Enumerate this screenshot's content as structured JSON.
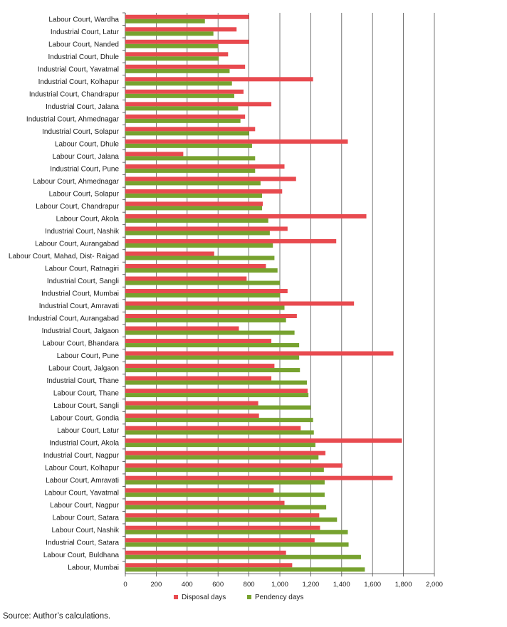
{
  "chart_data": {
    "type": "bar",
    "orientation": "horizontal",
    "categories": [
      "Labour Court, Wardha",
      "Industrial Court, Latur",
      "Labour Court, Nanded",
      "Industrial Court, Dhule",
      "Industrial Court, Yavatmal",
      "Industrial Court, Kolhapur",
      "Industrial Court, Chandrapur",
      "Industrial Court, Jalana",
      "Industrial Court, Ahmednagar",
      "Industrial Court, Solapur",
      "Labour Court, Dhule",
      "Labour Court, Jalana",
      "Industrial Court, Pune",
      "Labour Court, Ahmednagar",
      "Labour Court, Solapur",
      "Labour Court, Chandrapur",
      "Labour Court, Akola",
      "Industrial Court, Nashik",
      "Labour Court, Aurangabad",
      "Labour Court, Mahad, Dist- Raigad",
      "Labour Court, Ratnagiri",
      "Industrial Court, Sangli",
      "Industrial Court, Mumbai",
      "Industrial Court, Amravati",
      "Industrial Court, Aurangabad",
      "Industrial Court, Jalgaon",
      "Labour Court, Bhandara",
      "Labour Court, Pune",
      "Labour Court, Jalgaon",
      "Industrial Court, Thane",
      "Labour Court, Thane",
      "Labour Court, Sangli",
      "Labour Court, Gondia",
      "Labour Court, Latur",
      "Industrial Court, Akola",
      "Industrial Court, Nagpur",
      "Labour Court, Kolhapur",
      "Labour Court, Amravati",
      "Labour Court, Yavatmal",
      "Labour Court, Nagpur",
      "Labour Court, Satara",
      "Labour Court, Nashik",
      "Industrial Court, Satara",
      "Labour Court, Buldhana",
      "Labour, Mumbai"
    ],
    "series": [
      {
        "name": "Disposal days",
        "color": "#e84a4f",
        "values": [
          800,
          720,
          800,
          665,
          775,
          1215,
          765,
          945,
          775,
          840,
          1440,
          375,
          1030,
          1105,
          1015,
          890,
          1560,
          1050,
          1365,
          575,
          910,
          785,
          1050,
          1480,
          1110,
          735,
          945,
          1735,
          965,
          945,
          1180,
          860,
          865,
          1135,
          1790,
          1295,
          1405,
          1730,
          960,
          1030,
          1255,
          1260,
          1225,
          1040,
          1080
        ]
      },
      {
        "name": "Pendency days",
        "color": "#77a22f",
        "values": [
          515,
          570,
          600,
          605,
          675,
          690,
          705,
          730,
          745,
          800,
          820,
          840,
          840,
          875,
          885,
          885,
          925,
          935,
          955,
          965,
          985,
          1000,
          1000,
          1030,
          1040,
          1095,
          1125,
          1125,
          1130,
          1175,
          1185,
          1200,
          1215,
          1220,
          1230,
          1250,
          1285,
          1290,
          1290,
          1300,
          1370,
          1440,
          1445,
          1525,
          1550
        ]
      }
    ],
    "x_ticks": [
      "0",
      "200",
      "400",
      "600",
      "800",
      "1,000",
      "1,200",
      "1,400",
      "1,600",
      "1,800",
      "2,000"
    ],
    "xlim": [
      0,
      2000
    ],
    "grid": "vertical",
    "legend": "bottom"
  },
  "source_note": "Source: Author’s calculations."
}
